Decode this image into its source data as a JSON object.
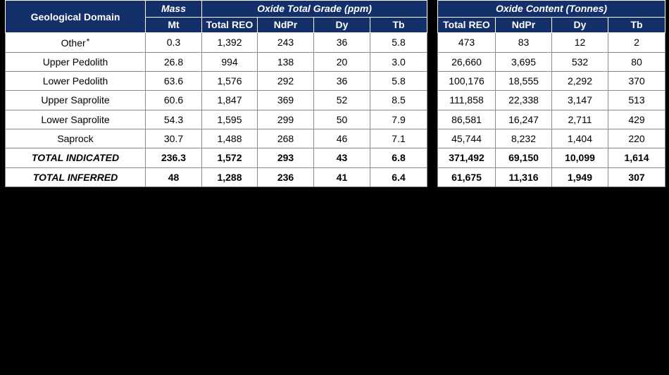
{
  "left_table": {
    "headers": {
      "domain": "Geological Domain",
      "mass_group": "Mass",
      "grade_group": "Oxide Total Grade (ppm)",
      "sub": [
        "Mt",
        "Total REO",
        "NdPr",
        "Dy",
        "Tb"
      ]
    },
    "rows": [
      {
        "domain": "Other",
        "note": "*",
        "mt": "0.3",
        "treo": "1,392",
        "ndpr": "243",
        "dy": "36",
        "tb": "5.8"
      },
      {
        "domain": "Upper Pedolith",
        "note": "",
        "mt": "26.8",
        "treo": "994",
        "ndpr": "138",
        "dy": "20",
        "tb": "3.0"
      },
      {
        "domain": "Lower Pedolith",
        "note": "",
        "mt": "63.6",
        "treo": "1,576",
        "ndpr": "292",
        "dy": "36",
        "tb": "5.8"
      },
      {
        "domain": "Upper Saprolite",
        "note": "",
        "mt": "60.6",
        "treo": "1,847",
        "ndpr": "369",
        "dy": "52",
        "tb": "8.5"
      },
      {
        "domain": "Lower Saprolite",
        "note": "",
        "mt": "54.3",
        "treo": "1,595",
        "ndpr": "299",
        "dy": "50",
        "tb": "7.9"
      },
      {
        "domain": "Saprock",
        "note": "",
        "mt": "30.7",
        "treo": "1,488",
        "ndpr": "268",
        "dy": "46",
        "tb": "7.1"
      }
    ],
    "totals": [
      {
        "domain": "TOTAL INDICATED",
        "mt": "236.3",
        "treo": "1,572",
        "ndpr": "293",
        "dy": "43",
        "tb": "6.8"
      },
      {
        "domain": "TOTAL INFERRED",
        "mt": "48",
        "treo": "1,288",
        "ndpr": "236",
        "dy": "41",
        "tb": "6.4"
      }
    ]
  },
  "right_table": {
    "headers": {
      "group": "Oxide Content (Tonnes)",
      "sub": [
        "Total REO",
        "NdPr",
        "Dy",
        "Tb"
      ]
    },
    "rows": [
      {
        "treo": "473",
        "ndpr": "83",
        "dy": "12",
        "tb": "2"
      },
      {
        "treo": "26,660",
        "ndpr": "3,695",
        "dy": "532",
        "tb": "80"
      },
      {
        "treo": "100,176",
        "ndpr": "18,555",
        "dy": "2,292",
        "tb": "370"
      },
      {
        "treo": "111,858",
        "ndpr": "22,338",
        "dy": "3,147",
        "tb": "513"
      },
      {
        "treo": "86,581",
        "ndpr": "16,247",
        "dy": "2,711",
        "tb": "429"
      },
      {
        "treo": "45,744",
        "ndpr": "8,232",
        "dy": "1,404",
        "tb": "220"
      }
    ],
    "totals": [
      {
        "treo": "371,492",
        "ndpr": "69,150",
        "dy": "10,099",
        "tb": "1,614"
      },
      {
        "treo": "61,675",
        "ndpr": "11,316",
        "dy": "1,949",
        "tb": "307"
      }
    ]
  },
  "colors": {
    "header_bg": "#14306a",
    "header_text": "#ffffff",
    "background": "#000000"
  }
}
